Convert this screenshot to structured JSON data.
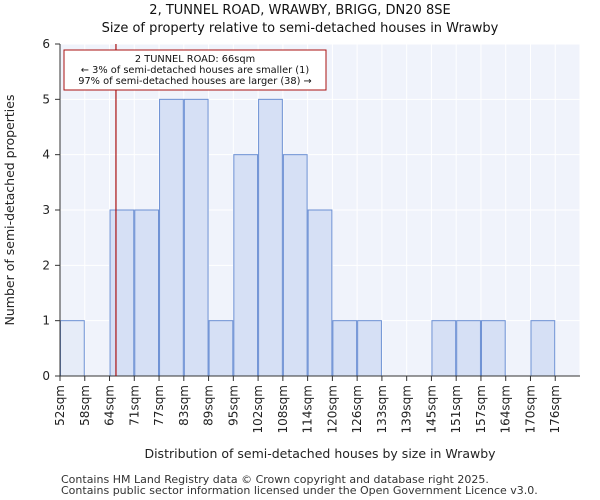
{
  "chart_data": {
    "type": "bar",
    "title": "2, TUNNEL ROAD, WRAWBY, BRIGG, DN20 8SE",
    "subtitle": "Size of property relative to semi-detached houses in Wrawby",
    "xlabel": "Distribution of semi-detached houses by size in Wrawby",
    "ylabel": "Number of semi-detached properties",
    "categories": [
      "52sqm",
      "58sqm",
      "64sqm",
      "71sqm",
      "77sqm",
      "83sqm",
      "89sqm",
      "95sqm",
      "102sqm",
      "108sqm",
      "114sqm",
      "120sqm",
      "126sqm",
      "133sqm",
      "139sqm",
      "145sqm",
      "151sqm",
      "157sqm",
      "164sqm",
      "170sqm",
      "176sqm"
    ],
    "values": [
      1,
      0,
      3,
      3,
      5,
      5,
      1,
      4,
      5,
      4,
      3,
      1,
      1,
      0,
      0,
      1,
      1,
      1,
      0,
      1,
      0
    ],
    "ylim": [
      0,
      6
    ],
    "yticks": [
      0,
      1,
      2,
      3,
      4,
      5,
      6
    ],
    "grid": true,
    "highlight_bins": [
      0
    ],
    "marker": {
      "value_sqm": 66,
      "bin_position": 2.26
    },
    "annotation": {
      "line1": "2 TUNNEL ROAD: 66sqm",
      "line2": "← 3% of semi-detached houses are smaller (1)",
      "line3": "97% of semi-detached houses are larger (38) →"
    },
    "colors": {
      "bar_fill": "#d6e0f5",
      "bar_highlight": "#e6ecf8",
      "bar_stroke": "#6b8fd3",
      "plot_bg": "#f0f3fb",
      "grid": "#ffffff",
      "marker": "#aa1111",
      "annotation_border": "#aa1111"
    }
  },
  "footer": {
    "line1": "Contains HM Land Registry data © Crown copyright and database right 2025.",
    "line2": "Contains public sector information licensed under the Open Government Licence v3.0."
  }
}
